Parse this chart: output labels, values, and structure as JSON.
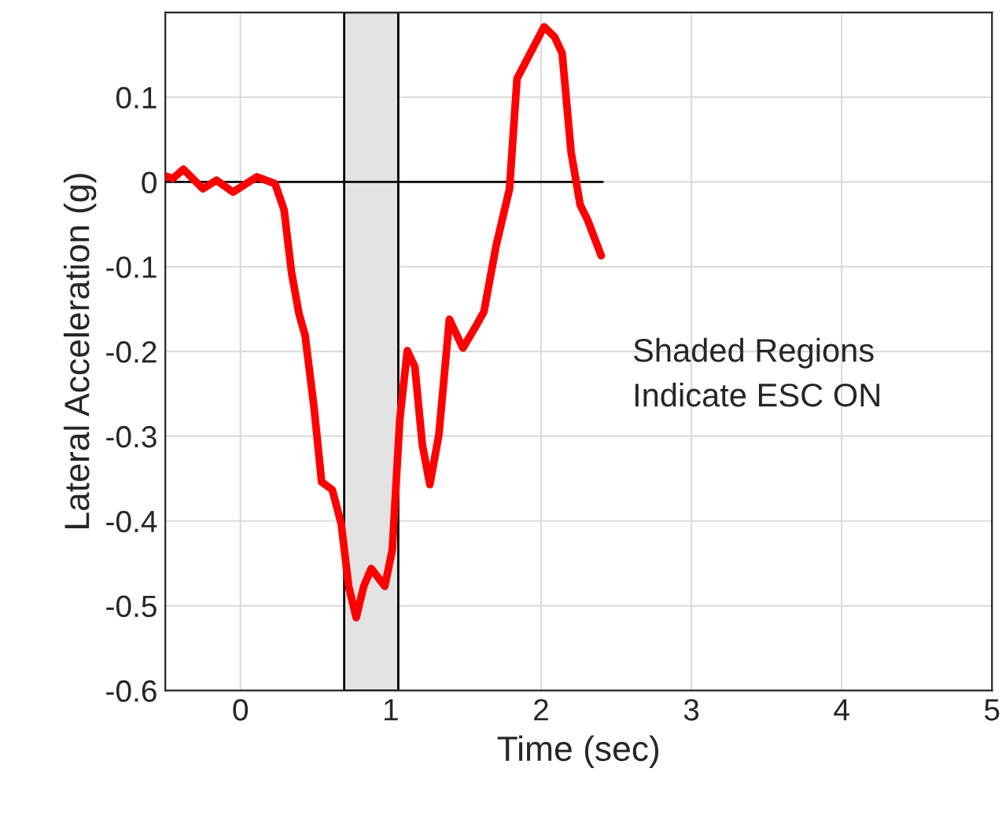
{
  "chart_data": {
    "type": "line",
    "xlabel": "Time (sec)",
    "ylabel": "Lateral Acceleration (g)",
    "xlim": [
      -0.5,
      5
    ],
    "xticks": [
      0,
      1,
      2,
      3,
      4,
      5
    ],
    "ylim": [
      -0.6,
      0.2
    ],
    "yticks": [
      -0.6,
      -0.5,
      -0.4,
      -0.3,
      -0.2,
      -0.1,
      0,
      0.1
    ],
    "grid": true,
    "legend": false,
    "series": [
      {
        "color": "#000000",
        "x": [
          -0.5,
          2.41
        ],
        "values": [
          0,
          0
        ]
      },
      {
        "color": "#ff0000",
        "x": [
          -0.5,
          -0.45,
          -0.38,
          -0.25,
          -0.16,
          -0.05,
          0.11,
          0.23,
          0.29,
          0.34,
          0.39,
          0.43,
          0.49,
          0.54,
          0.61,
          0.67,
          0.72,
          0.77,
          0.82,
          0.87,
          0.96,
          1.01,
          1.06,
          1.11,
          1.16,
          1.21,
          1.26,
          1.32,
          1.39,
          1.48,
          1.57,
          1.62,
          1.7,
          1.79,
          1.84,
          1.89,
          1.99,
          2.02,
          2.09,
          2.14,
          2.2,
          2.26,
          2.31,
          2.4
        ],
        "values": [
          0.007,
          0.004,
          0.015,
          -0.008,
          0.002,
          -0.012,
          0.006,
          -0.002,
          -0.033,
          -0.107,
          -0.156,
          -0.181,
          -0.267,
          -0.354,
          -0.363,
          -0.403,
          -0.477,
          -0.514,
          -0.477,
          -0.456,
          -0.477,
          -0.434,
          -0.28,
          -0.199,
          -0.218,
          -0.31,
          -0.357,
          -0.298,
          -0.162,
          -0.196,
          -0.169,
          -0.153,
          -0.076,
          -0.008,
          0.122,
          null,
          null,
          0.183,
          0.171,
          0.152,
          0.035,
          -0.027,
          -0.045,
          -0.087
        ]
      }
    ],
    "bands": [
      {
        "axis": "x",
        "from": 0.69,
        "to": 1.05,
        "color": "#e3e3e3"
      }
    ],
    "annotations": [
      "Shaded Regions\nIndicate ESC ON"
    ]
  }
}
